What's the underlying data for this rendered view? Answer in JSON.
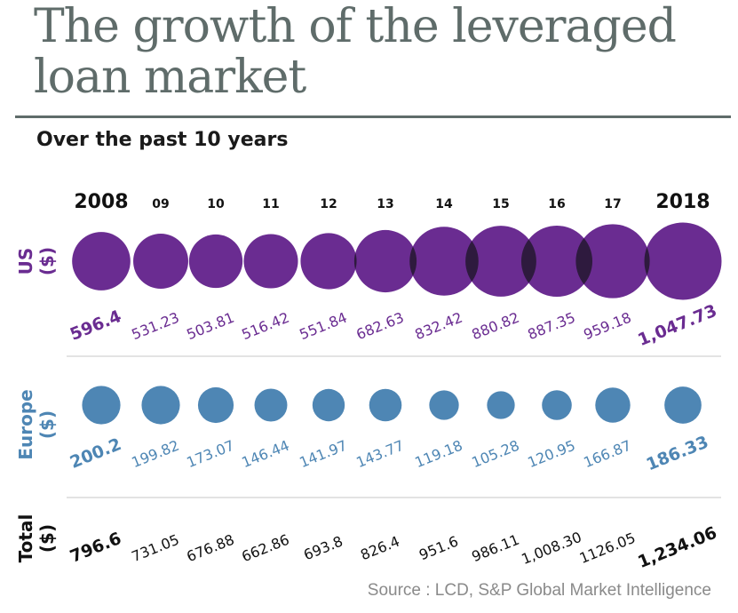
{
  "title": "The growth of the leveraged loan market",
  "subtitle": "Over the past 10 years",
  "source": "Source : LCD, S&P Global Market Intelligence",
  "colors": {
    "us": "#6a2c91",
    "us_overlap": "#2e1a3e",
    "europe": "#4e86b4",
    "total": "#111111",
    "title": "#5f6c6a",
    "divider": "#e3e3e3"
  },
  "chart_data": {
    "type": "bubble",
    "categories": [
      "2008",
      "09",
      "10",
      "11",
      "12",
      "13",
      "14",
      "15",
      "16",
      "17",
      "2018"
    ],
    "series": [
      {
        "name": "US ($)",
        "values": [
          596.4,
          531.23,
          503.81,
          516.42,
          551.84,
          682.63,
          832.42,
          880.82,
          887.35,
          959.18,
          1047.73
        ],
        "labels": [
          "596.4",
          "531.23",
          "503.81",
          "516.42",
          "551.84",
          "682.63",
          "832.42",
          "880.82",
          "887.35",
          "959.18",
          "1,047.73"
        ]
      },
      {
        "name": "Europe ($)",
        "values": [
          200.2,
          199.82,
          173.07,
          146.44,
          141.97,
          143.77,
          119.18,
          105.28,
          120.95,
          166.87,
          186.33
        ],
        "labels": [
          "200.2",
          "199.82",
          "173.07",
          "146.44",
          "141.97",
          "143.77",
          "119.18",
          "105.28",
          "120.95",
          "166.87",
          "186.33"
        ]
      },
      {
        "name": "Total ($)",
        "values": [
          796.6,
          731.05,
          676.88,
          662.86,
          693.8,
          826.4,
          951.6,
          986.11,
          1008.3,
          1126.05,
          1234.06
        ],
        "labels": [
          "796.6",
          "731.05",
          "676.88",
          "662.86",
          "693.8",
          "826.4",
          "951.6",
          "986.11",
          "1,008.30",
          "1126.05",
          "1,234.06"
        ]
      }
    ],
    "row_labels": {
      "us": [
        "US",
        "($)"
      ],
      "europe": [
        "Europe",
        "($)"
      ],
      "total": [
        "Total",
        "($)"
      ]
    },
    "bold_categories": [
      0,
      10
    ]
  }
}
